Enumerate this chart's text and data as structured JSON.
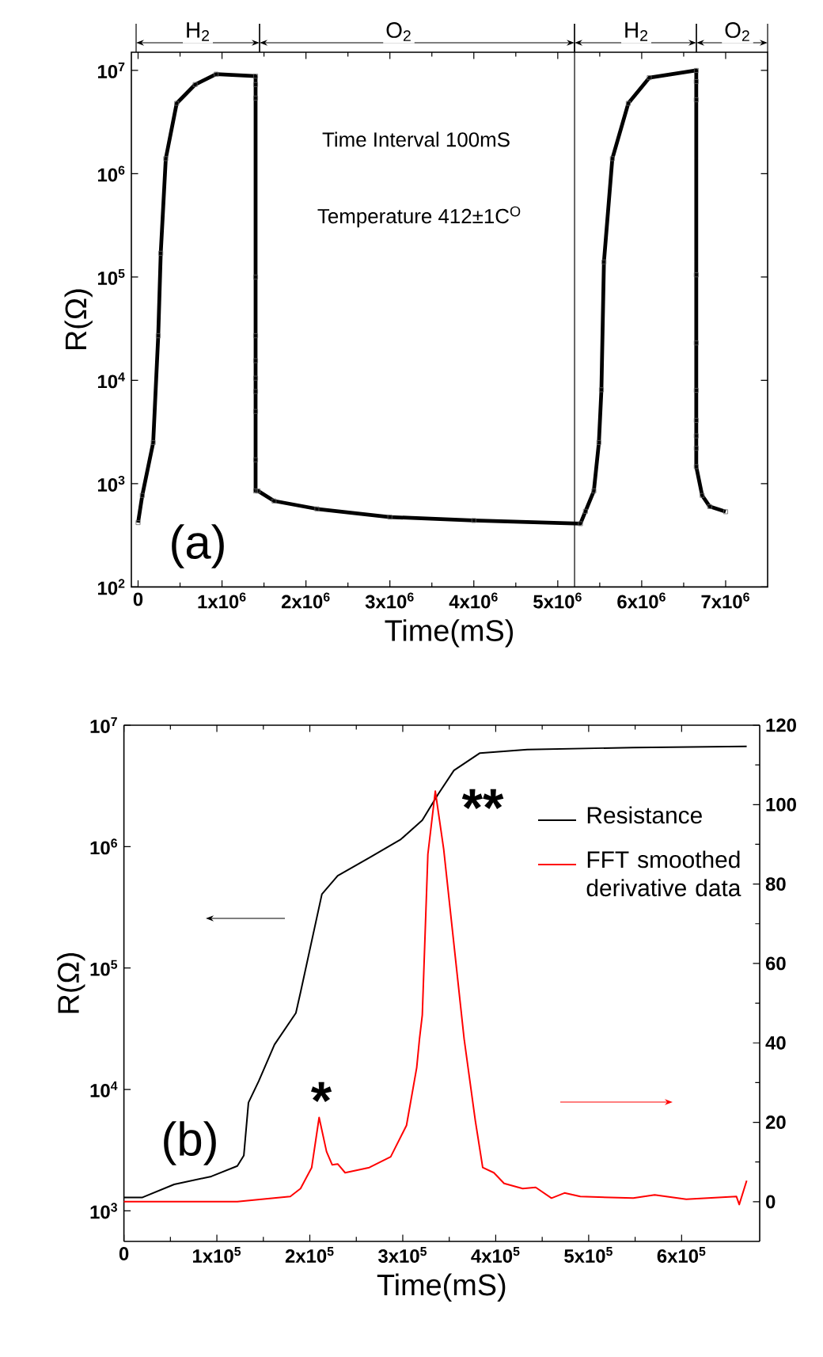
{
  "chart_data": [
    {
      "type": "line",
      "marker": "square",
      "xlabel": "Time(mS)",
      "ylabel": "R(Ω)",
      "log": "y",
      "color": "#000000",
      "xlim": [
        -80000,
        7500000
      ],
      "ylim": [
        100,
        15000000
      ],
      "xticks": [
        0,
        {
          "value": 1000000,
          "label": "1x10$^{6}$"
        },
        {
          "value": 2000000,
          "label": "2x10$^{6}$"
        },
        {
          "value": 3000000,
          "label": "3x10$^{6}$"
        },
        {
          "value": 4000000,
          "label": "4x10$^{6}$"
        },
        {
          "value": 5000000,
          "label": "5x10$^{6}$"
        },
        {
          "value": 6000000,
          "label": "6x10$^{6}$"
        },
        {
          "value": 7000000,
          "label": "7x10$^{6}$"
        }
      ],
      "yticks": [
        {
          "value": 100,
          "label": "10$^{2}$"
        },
        {
          "value": 1000,
          "label": "10$^{3}$"
        },
        {
          "value": 10000,
          "label": "10$^{4}$"
        },
        {
          "value": 100000,
          "label": "10$^{5}$"
        },
        {
          "value": 1000000,
          "label": "10$^{6}$"
        },
        {
          "value": 10000000,
          "label": "10$^{7}$"
        }
      ],
      "x": [
        0,
        50000,
        180000,
        240000,
        270000,
        330000,
        460000,
        680000,
        930000,
        1400000,
        1400000,
        1400000,
        1400000,
        1400000,
        1400000,
        1400000,
        1400000,
        1400000,
        1400000,
        1400000,
        1430000,
        1620000,
        2130000,
        3000000,
        4000000,
        5270000,
        5330000,
        5430000,
        5490000,
        5520000,
        5550000,
        5650000,
        5840000,
        6090000,
        6650000,
        6650000,
        6650000,
        6650000,
        6650000,
        6650000,
        6650000,
        6650000,
        6650000,
        6650000,
        6720000,
        6810000,
        7000000
      ],
      "values": [
        420,
        770,
        2500,
        27000,
        170000,
        1400000,
        4800000,
        7300000,
        9200000,
        8800000,
        7300000,
        5400000,
        100000,
        27000,
        15500,
        10500,
        7800,
        5000,
        1700,
        850,
        850,
        680,
        570,
        475,
        440,
        410,
        540,
        850,
        2500,
        8100,
        140000,
        1400000,
        4800000,
        8500000,
        10000000,
        7800000,
        5200000,
        105000,
        23000,
        8000,
        4100,
        2900,
        2200,
        1460,
        770,
        600,
        535
      ],
      "ref_lines": [
        {
          "axis": "x",
          "value": 5200000
        }
      ],
      "annotations": [
        "H$_{2}$",
        "O$_{2}$",
        "H$_{2}$",
        "O$_{2}$",
        "Time Interval 100mS",
        "Temperature 412±1C$^{O}$",
        "(a)"
      ]
    },
    {
      "type": "line",
      "xlabel": "Time(mS)",
      "ylabel": "R(Ω)",
      "log": "y",
      "legend": "right",
      "line_style": "solid",
      "xlim": [
        0,
        684000
      ],
      "ylim": [
        560,
        10000000
      ],
      "y2lim": [
        -10,
        120
      ],
      "xticks": [
        0,
        {
          "value": 100000,
          "label": "1x10$^{5}$"
        },
        {
          "value": 200000,
          "label": "2x10$^{5}$"
        },
        {
          "value": 300000,
          "label": "3x10$^{5}$"
        },
        {
          "value": 400000,
          "label": "4x10$^{5}$"
        },
        {
          "value": 500000,
          "label": "5x10$^{5}$"
        },
        {
          "value": 600000,
          "label": "6x10$^{5}$"
        }
      ],
      "yticks": [
        {
          "value": 1000,
          "label": "10$^{3}$"
        },
        {
          "value": 10000,
          "label": "10$^{4}$"
        },
        {
          "value": 100000,
          "label": "10$^{5}$"
        },
        {
          "value": 1000000,
          "label": "10$^{6}$"
        },
        {
          "value": 10000000,
          "label": "10$^{7}$"
        }
      ],
      "y2ticks": [
        0,
        20,
        40,
        60,
        80,
        100,
        120
      ],
      "series": [
        {
          "name": "Resistance",
          "color": "#000000",
          "x": [
            0,
            20000,
            54000,
            94000,
            122000,
            129000,
            134000,
            145000,
            162000,
            185000,
            190000,
            213000,
            230000,
            264000,
            298000,
            321000,
            338000,
            355000,
            383000,
            434000,
            548000,
            670000
          ],
          "values": [
            1290,
            1290,
            1650,
            1920,
            2340,
            2860,
            7800,
            11700,
            23400,
            42600,
            63000,
            406000,
            576000,
            810000,
            1150000,
            1650000,
            2700000,
            4240000,
            5900000,
            6300000,
            6550000,
            6700000
          ]
        },
        {
          "name": "FFT smoothed derivative data",
          "color": "#ff0000",
          "axis": "y2",
          "x": [
            0,
            122000,
            179000,
            190000,
            202000,
            210000,
            218000,
            224000,
            230000,
            238000,
            264000,
            287000,
            304000,
            315000,
            318000,
            321000,
            327000,
            335000,
            344000,
            366000,
            378000,
            386000,
            398000,
            409000,
            429000,
            443000,
            460000,
            474000,
            491000,
            548000,
            571000,
            605000,
            659000,
            662000,
            670000
          ],
          "values": [
            0,
            0,
            1.3,
            3.3,
            8.6,
            21.2,
            12.6,
            9.3,
            9.5,
            7.3,
            8.6,
            11.3,
            19.2,
            33.8,
            41,
            47,
            87.5,
            103.4,
            88.8,
            41,
            20.5,
            8.6,
            7.3,
            4.6,
            3.3,
            3.6,
            0.9,
            2.2,
            1.3,
            0.9,
            1.7,
            0.6,
            1.3,
            -0.7,
            5.3
          ]
        }
      ],
      "annotations": [
        "*",
        "**",
        "(b)"
      ]
    }
  ]
}
